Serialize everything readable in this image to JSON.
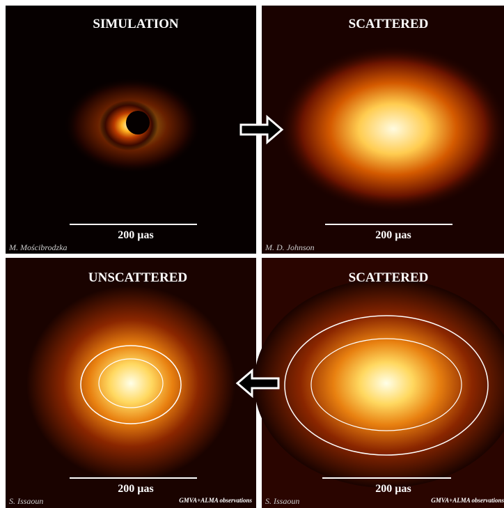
{
  "panels": [
    {
      "title": "SIMULATION",
      "scale_label": "200 µas",
      "credit": "M. Mościbrodzka"
    },
    {
      "title": "SCATTERED",
      "scale_label": "200 µas",
      "credit": "M. D. Johnson"
    },
    {
      "title": "UNSCATTERED",
      "scale_label": "200 µas",
      "credit": "S. Issaoun",
      "note": "GMVA+ALMA observations"
    },
    {
      "title": "SCATTERED",
      "scale_label": "200 µas",
      "credit": "S. Issaoun",
      "note": "GMVA+ALMA observations"
    }
  ]
}
